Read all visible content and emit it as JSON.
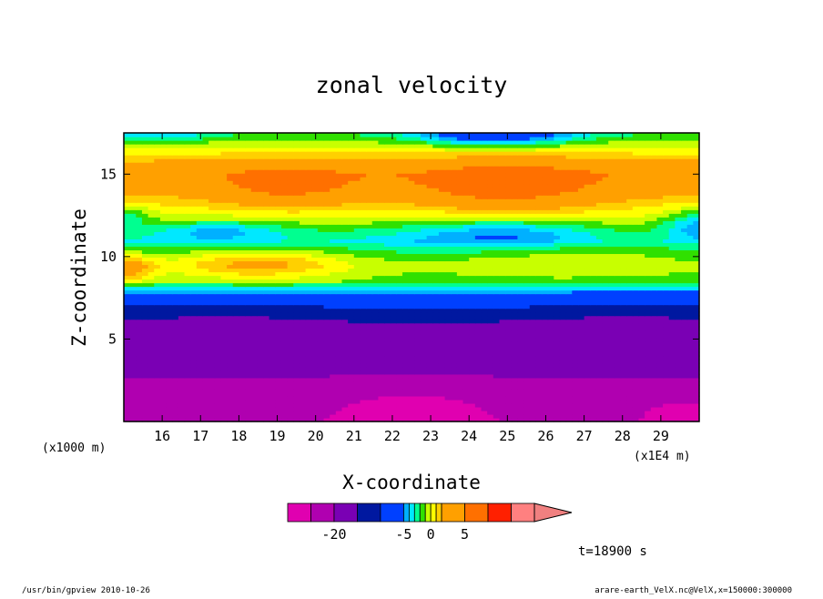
{
  "chart_data": {
    "type": "heatmap",
    "title": "zonal velocity",
    "xlabel": "X-coordinate",
    "ylabel": "Z-coordinate",
    "x_unit": "(x1E4 m)",
    "y_unit": "(x1000 m)",
    "xlim": [
      15,
      30
    ],
    "ylim": [
      0,
      17.5
    ],
    "x_ticks": [
      16,
      17,
      18,
      19,
      20,
      21,
      22,
      23,
      24,
      25,
      26,
      27,
      28,
      29
    ],
    "y_ticks": [
      5,
      10,
      15
    ],
    "levels": [
      -30,
      -25,
      -20,
      -15,
      -10,
      -5,
      -4,
      -3,
      -2,
      -1,
      0,
      1,
      2,
      5,
      10,
      15,
      20
    ],
    "colorbar_labels": [
      {
        "label": "-20",
        "value": -20
      },
      {
        "label": "-5",
        "value": -5
      },
      {
        "label": "0",
        "value": 0
      },
      {
        "label": "5",
        "value": 5
      }
    ],
    "colors": [
      "#e000b0",
      "#b000b0",
      "#7a00b4",
      "#0018a0",
      "#0040ff",
      "#00b0ff",
      "#00e8ff",
      "#00ff90",
      "#30e000",
      "#c8ff00",
      "#ffff00",
      "#ffd000",
      "#ffa000",
      "#ff7000",
      "#ff2000",
      "#ff8080"
    ]
  },
  "annotations": {
    "time": "t=18900 s",
    "program": "/usr/bin/gpview   2010-10-26",
    "source": "arare-earth_VelX.nc@VelX,x=150000:300000"
  }
}
